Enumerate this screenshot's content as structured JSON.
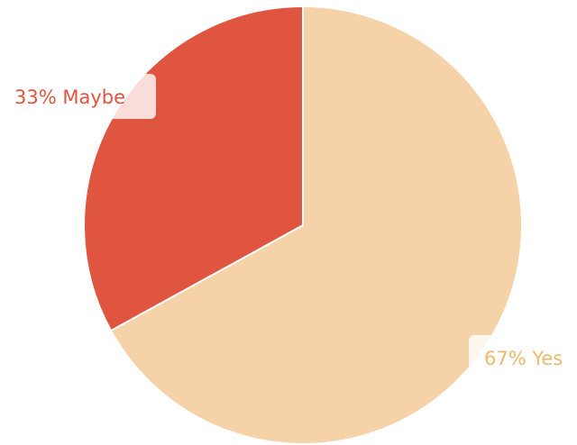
{
  "chart_data": {
    "type": "pie",
    "slices": [
      {
        "label": "Yes",
        "value": 67,
        "display": "67% Yes",
        "color": "#f5d2a8",
        "label_color": "#f0b86b"
      },
      {
        "label": "Maybe",
        "value": 33,
        "display": "33% Maybe",
        "color": "#e05540",
        "label_color": "#e05540"
      }
    ],
    "start_angle_deg": 0,
    "direction": "clockwise",
    "legend": "none"
  }
}
